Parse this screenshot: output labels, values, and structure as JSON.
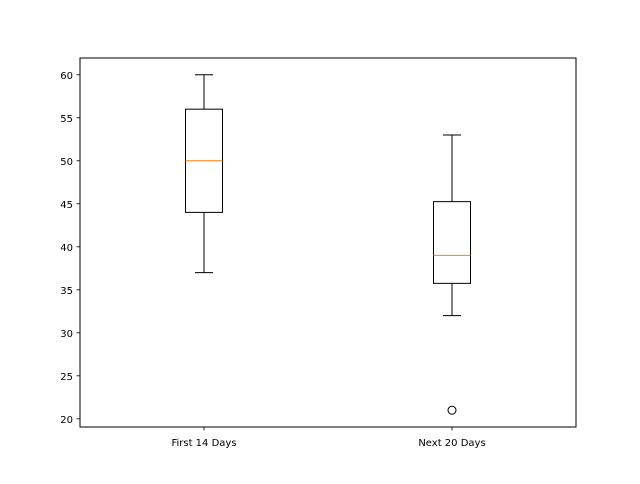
{
  "chart_data": {
    "type": "box",
    "title": "",
    "xlabel": "",
    "ylabel": "",
    "ylim": [
      19.05,
      61.95
    ],
    "yticks": [
      20,
      25,
      30,
      35,
      40,
      45,
      50,
      55,
      60
    ],
    "grid": false,
    "colors": {
      "box": "#000000",
      "median": "#ff7f0e",
      "flier": "#000000",
      "background": "#ffffff"
    },
    "categories": [
      "First 14 Days",
      "Next 20 Days"
    ],
    "boxes": [
      {
        "label": "First 14 Days",
        "whisker_low": 37,
        "q1": 44,
        "median": 50,
        "q3": 56,
        "whisker_high": 60,
        "outliers": []
      },
      {
        "label": "Next 20 Days",
        "whisker_low": 32,
        "q1": 35.75,
        "median": 39,
        "q3": 45.25,
        "whisker_high": 53,
        "outliers": [
          21
        ]
      }
    ]
  }
}
